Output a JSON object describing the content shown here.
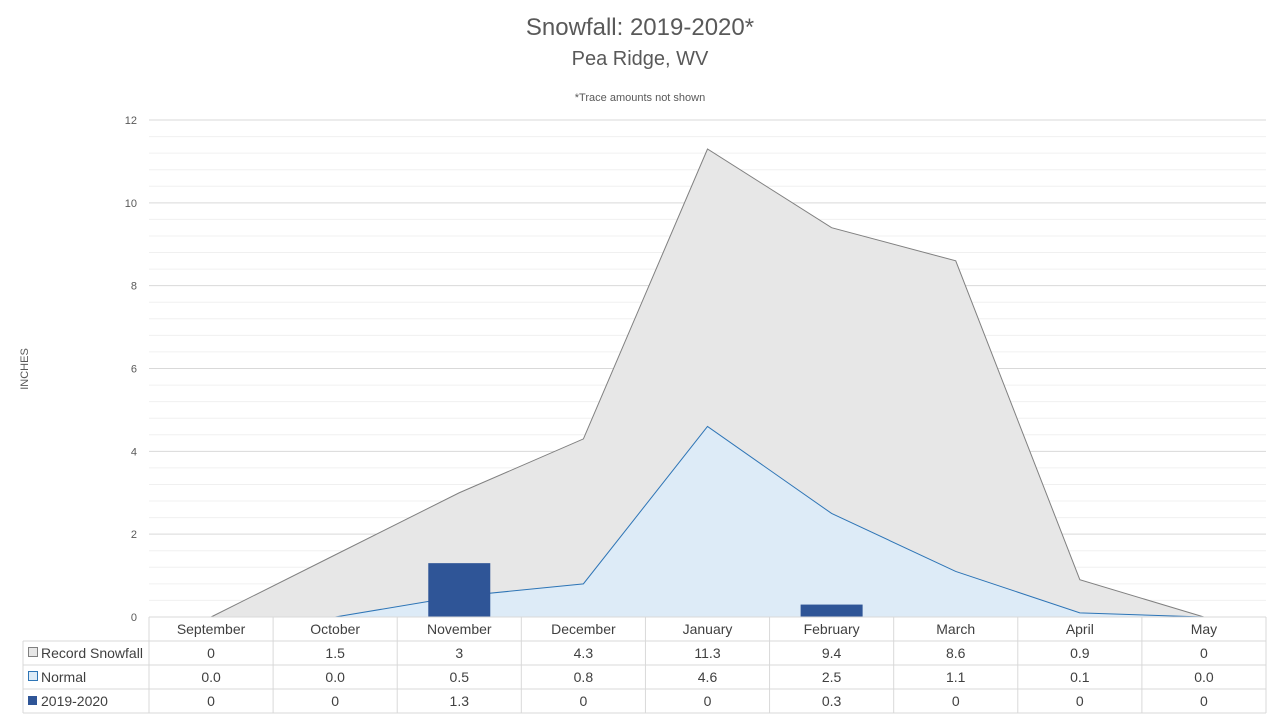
{
  "chart_data": {
    "type": "area",
    "title": "Snowfall: 2019-2020*",
    "subtitle": "Pea Ridge, WV",
    "note": "*Trace amounts not shown",
    "ylabel": "INCHES",
    "ylim": [
      0,
      12
    ],
    "yticks": [
      0,
      2,
      4,
      6,
      8,
      10,
      12
    ],
    "categories": [
      "September",
      "October",
      "November",
      "December",
      "January",
      "February",
      "March",
      "April",
      "May"
    ],
    "series": [
      {
        "name": "Record Snowfall",
        "kind": "area",
        "color": "#e7e7e7",
        "stroke": "#808080",
        "values": [
          0,
          1.5,
          3,
          4.3,
          11.3,
          9.4,
          8.6,
          0.9,
          0
        ],
        "display": [
          "0",
          "1.5",
          "3",
          "4.3",
          "11.3",
          "9.4",
          "8.6",
          "0.9",
          "0"
        ]
      },
      {
        "name": "Normal",
        "kind": "area",
        "color": "#ddebf7",
        "stroke": "#2e75b6",
        "values": [
          0.0,
          0.0,
          0.5,
          0.8,
          4.6,
          2.5,
          1.1,
          0.1,
          0.0
        ],
        "display": [
          "0.0",
          "0.0",
          "0.5",
          "0.8",
          "4.6",
          "2.5",
          "1.1",
          "0.1",
          "0.0"
        ]
      },
      {
        "name": "2019-2020",
        "kind": "bar",
        "color": "#2f5597",
        "values": [
          0,
          0,
          1.3,
          0,
          0,
          0.3,
          0,
          0,
          0
        ],
        "display": [
          "0",
          "0",
          "1.3",
          "0",
          "0",
          "0.3",
          "0",
          "0",
          "0"
        ]
      }
    ],
    "grid": true,
    "legend": "data-table"
  }
}
